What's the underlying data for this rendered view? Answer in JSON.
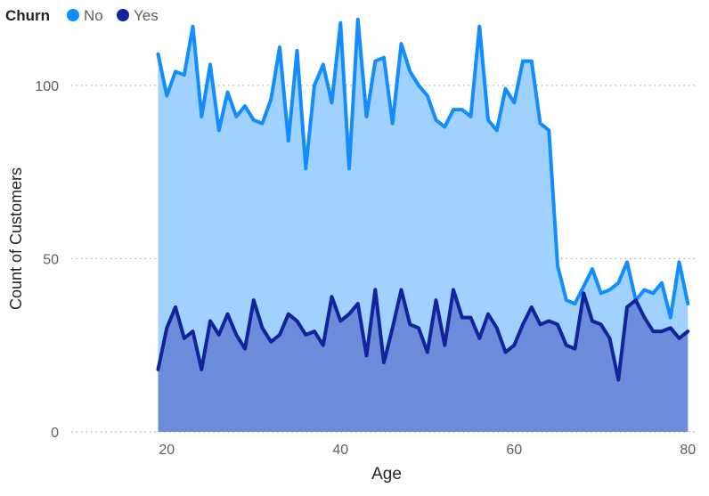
{
  "legend": {
    "title": "Churn",
    "items": [
      {
        "label": "No",
        "color": "#118DFF"
      },
      {
        "label": "Yes",
        "color": "#12239E"
      }
    ]
  },
  "chart_data": {
    "type": "area",
    "xlabel": "Age",
    "ylabel": "Count of Customers",
    "xlim": [
      9,
      81
    ],
    "ylim": [
      0,
      120
    ],
    "x_ticks": [
      20,
      40,
      60,
      80
    ],
    "y_ticks": [
      0,
      50,
      100
    ],
    "grid": true,
    "legend_position": "top-left",
    "x": [
      19,
      20,
      21,
      22,
      23,
      24,
      25,
      26,
      27,
      28,
      29,
      30,
      31,
      32,
      33,
      34,
      35,
      36,
      37,
      38,
      39,
      40,
      41,
      42,
      43,
      44,
      45,
      46,
      47,
      48,
      49,
      50,
      51,
      52,
      53,
      54,
      55,
      56,
      57,
      58,
      59,
      60,
      61,
      62,
      63,
      64,
      65,
      66,
      67,
      68,
      69,
      70,
      71,
      72,
      73,
      74,
      75,
      76,
      77,
      78,
      79,
      80
    ],
    "series": [
      {
        "name": "No",
        "line_color": "#118DFF",
        "fill_color": "#A0D1FF",
        "values": [
          109,
          97,
          104,
          103,
          117,
          91,
          106,
          87,
          98,
          91,
          94,
          90,
          89,
          96,
          111,
          84,
          110,
          76,
          100,
          106,
          95,
          118,
          76,
          119,
          91,
          107,
          108,
          89,
          112,
          104,
          100,
          97,
          90,
          88,
          93,
          93,
          91,
          117,
          90,
          87,
          99,
          95,
          107,
          107,
          89,
          87,
          48,
          38,
          37,
          42,
          47,
          40,
          41,
          43,
          49,
          38,
          41,
          40,
          43,
          33,
          49,
          37
        ]
      },
      {
        "name": "Yes",
        "line_color": "#12239E",
        "fill_color": "#6B8CD9",
        "values": [
          18,
          30,
          36,
          27,
          29,
          18,
          32,
          28,
          34,
          28,
          24,
          38,
          30,
          26,
          28,
          34,
          32,
          28,
          29,
          25,
          39,
          32,
          34,
          37,
          22,
          41,
          20,
          30,
          41,
          31,
          30,
          23,
          38,
          25,
          41,
          33,
          33,
          27,
          34,
          30,
          23,
          25,
          31,
          36,
          31,
          32,
          31,
          25,
          24,
          40,
          32,
          31,
          27,
          15,
          36,
          38,
          33,
          29,
          29,
          30,
          27,
          29
        ]
      }
    ]
  }
}
